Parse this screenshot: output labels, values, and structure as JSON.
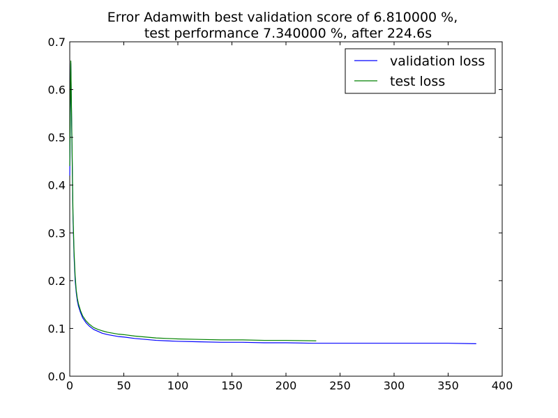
{
  "chart_data": {
    "type": "line",
    "title": [
      "Error Adamwith best validation score of 6.810000 %,",
      "test performance 7.340000 %, after 224.6s"
    ],
    "xlabel": "",
    "ylabel": "",
    "xlim": [
      0,
      400
    ],
    "ylim": [
      0.0,
      0.7
    ],
    "xticks": [
      0,
      50,
      100,
      150,
      200,
      250,
      300,
      350,
      400
    ],
    "yticks": [
      0.0,
      0.1,
      0.2,
      0.3,
      0.4,
      0.5,
      0.6,
      0.7
    ],
    "xtick_labels": [
      "0",
      "50",
      "100",
      "150",
      "200",
      "250",
      "300",
      "350",
      "400"
    ],
    "ytick_labels": [
      "0.0",
      "0.1",
      "0.2",
      "0.3",
      "0.4",
      "0.5",
      "0.6",
      "0.7"
    ],
    "grid": false,
    "legend_position": "top-right",
    "series": [
      {
        "name": "validation loss",
        "color": "#0000ff",
        "x": [
          0,
          1,
          2,
          3,
          4,
          5,
          6,
          7,
          8,
          10,
          12,
          15,
          18,
          22,
          26,
          30,
          35,
          40,
          45,
          50,
          60,
          70,
          80,
          90,
          100,
          120,
          140,
          160,
          180,
          200,
          225,
          250,
          275,
          300,
          325,
          350,
          376
        ],
        "y": [
          0.42,
          0.655,
          0.49,
          0.33,
          0.25,
          0.2,
          0.175,
          0.158,
          0.147,
          0.133,
          0.122,
          0.112,
          0.105,
          0.098,
          0.094,
          0.09,
          0.087,
          0.085,
          0.083,
          0.082,
          0.079,
          0.077,
          0.075,
          0.074,
          0.073,
          0.072,
          0.071,
          0.071,
          0.07,
          0.07,
          0.069,
          0.069,
          0.069,
          0.069,
          0.069,
          0.069,
          0.068
        ]
      },
      {
        "name": "test loss",
        "color": "#008000",
        "x": [
          0,
          1,
          2,
          3,
          4,
          5,
          6,
          7,
          8,
          10,
          12,
          15,
          18,
          22,
          26,
          30,
          35,
          40,
          45,
          50,
          60,
          70,
          80,
          90,
          100,
          120,
          140,
          160,
          180,
          200,
          228
        ],
        "y": [
          0.44,
          0.66,
          0.5,
          0.34,
          0.26,
          0.21,
          0.18,
          0.163,
          0.152,
          0.137,
          0.126,
          0.116,
          0.109,
          0.102,
          0.098,
          0.095,
          0.092,
          0.09,
          0.088,
          0.087,
          0.084,
          0.082,
          0.08,
          0.079,
          0.078,
          0.077,
          0.076,
          0.076,
          0.075,
          0.075,
          0.074
        ]
      }
    ]
  }
}
